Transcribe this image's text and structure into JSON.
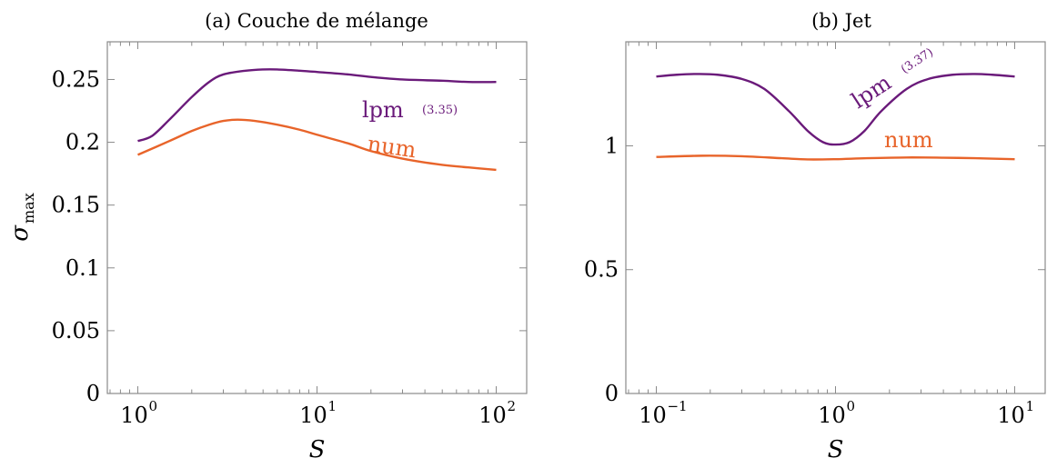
{
  "colors": {
    "lpm": "#6a1a7a",
    "num": "#e8642a"
  },
  "chart_data": [
    {
      "type": "line",
      "title": "(a) Couche de mélange",
      "xlabel": "S",
      "ylabel": "σ",
      "ylabel_sub": "max",
      "xscale": "log",
      "xlim": [
        1.0,
        100.0
      ],
      "ylim": [
        0,
        0.28
      ],
      "xticks": [
        {
          "base": "10",
          "exp": "0",
          "value": 1
        },
        {
          "base": "10",
          "exp": "1",
          "value": 10
        },
        {
          "base": "10",
          "exp": "2",
          "value": 100
        }
      ],
      "yticks": [
        {
          "label": "0",
          "value": 0
        },
        {
          "label": "0.05",
          "value": 0.05
        },
        {
          "label": "0.1",
          "value": 0.1
        },
        {
          "label": "0.15",
          "value": 0.15
        },
        {
          "label": "0.2",
          "value": 0.2
        },
        {
          "label": "0.25",
          "value": 0.25
        }
      ],
      "series": [
        {
          "name": "lpm",
          "annotation_ref": "(3.35)",
          "color_key": "lpm",
          "x": [
            1.0,
            1.2,
            1.5,
            2.0,
            2.5,
            3.0,
            4.0,
            5.0,
            6.0,
            8.0,
            10,
            15,
            20,
            30,
            50,
            70,
            100
          ],
          "y": [
            0.201,
            0.205,
            0.218,
            0.236,
            0.248,
            0.254,
            0.257,
            0.258,
            0.258,
            0.257,
            0.256,
            0.254,
            0.252,
            0.25,
            0.249,
            0.248,
            0.248
          ]
        },
        {
          "name": "num",
          "color_key": "num",
          "x": [
            1.0,
            1.5,
            2.0,
            2.5,
            3.0,
            3.6,
            4.5,
            6.0,
            8.0,
            10,
            15,
            20,
            30,
            50,
            70,
            100
          ],
          "y": [
            0.19,
            0.201,
            0.209,
            0.214,
            0.217,
            0.218,
            0.217,
            0.214,
            0.21,
            0.206,
            0.199,
            0.193,
            0.187,
            0.182,
            0.18,
            0.178
          ]
        }
      ]
    },
    {
      "type": "line",
      "title": "(b) Jet",
      "xlabel": "S",
      "xscale": "log",
      "xlim": [
        0.1,
        10
      ],
      "ylim": [
        0,
        1.42
      ],
      "xticks": [
        {
          "base": "10",
          "exp": "−1",
          "value": 0.1
        },
        {
          "base": "10",
          "exp": "0",
          "value": 1
        },
        {
          "base": "10",
          "exp": "1",
          "value": 10
        }
      ],
      "yticks": [
        {
          "label": "0",
          "value": 0
        },
        {
          "label": "0.5",
          "value": 0.5
        },
        {
          "label": "1",
          "value": 1
        }
      ],
      "series": [
        {
          "name": "lpm",
          "annotation_ref": "(3.37)",
          "color_key": "lpm",
          "x": [
            0.1,
            0.13,
            0.17,
            0.22,
            0.3,
            0.4,
            0.55,
            0.7,
            0.85,
            1.0,
            1.2,
            1.45,
            1.8,
            2.5,
            3.3,
            4.5,
            6.0,
            7.5,
            10
          ],
          "y": [
            1.28,
            1.287,
            1.29,
            1.287,
            1.27,
            1.23,
            1.14,
            1.06,
            1.015,
            1.005,
            1.015,
            1.06,
            1.14,
            1.23,
            1.27,
            1.287,
            1.29,
            1.287,
            1.28
          ]
        },
        {
          "name": "num",
          "color_key": "num",
          "x": [
            0.1,
            0.18,
            0.3,
            0.5,
            0.7,
            1.0,
            1.5,
            2.5,
            4.0,
            6.0,
            10
          ],
          "y": [
            0.955,
            0.96,
            0.958,
            0.95,
            0.945,
            0.946,
            0.95,
            0.953,
            0.952,
            0.95,
            0.946
          ]
        }
      ]
    }
  ]
}
